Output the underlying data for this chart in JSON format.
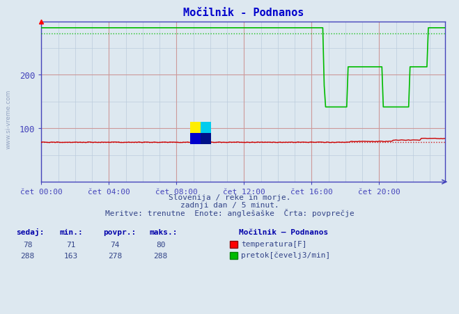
{
  "title": "Močilnik - Podnanos",
  "bg_color": "#dde8f0",
  "plot_bg_color": "#dde8f0",
  "xlim": [
    0,
    287
  ],
  "ylim": [
    0,
    300
  ],
  "yticks": [
    100,
    200
  ],
  "xtick_labels": [
    "čet 00:00",
    "čet 04:00",
    "čet 08:00",
    "čet 12:00",
    "čet 16:00",
    "čet 20:00"
  ],
  "xtick_positions": [
    0,
    48,
    96,
    144,
    192,
    240
  ],
  "temp_color": "#cc0000",
  "flow_color": "#00bb00",
  "temp_avg": 74,
  "flow_avg": 278,
  "subtitle1": "Slovenija / reke in morje.",
  "subtitle2": "zadnji dan / 5 minut.",
  "subtitle3": "Meritve: trenutne  Enote: anglešaške  Črta: povprečje",
  "legend_title": "Močilnik – Podnanos",
  "legend_temp": "temperatura[F]",
  "legend_flow": "pretok[čevelj3/min]",
  "table_headers": [
    "sedaj:",
    "min.:",
    "povpr.:",
    "maks.:"
  ],
  "table_temp": [
    78,
    71,
    74,
    80
  ],
  "table_flow": [
    288,
    163,
    278,
    288
  ],
  "title_color": "#0000cc",
  "axis_color": "#4444bb",
  "text_color": "#334488",
  "header_color": "#0000aa",
  "grid_major_color": "#cc9999",
  "grid_minor_color": "#bbccdd",
  "watermark_text": "www.si-vreme.com"
}
